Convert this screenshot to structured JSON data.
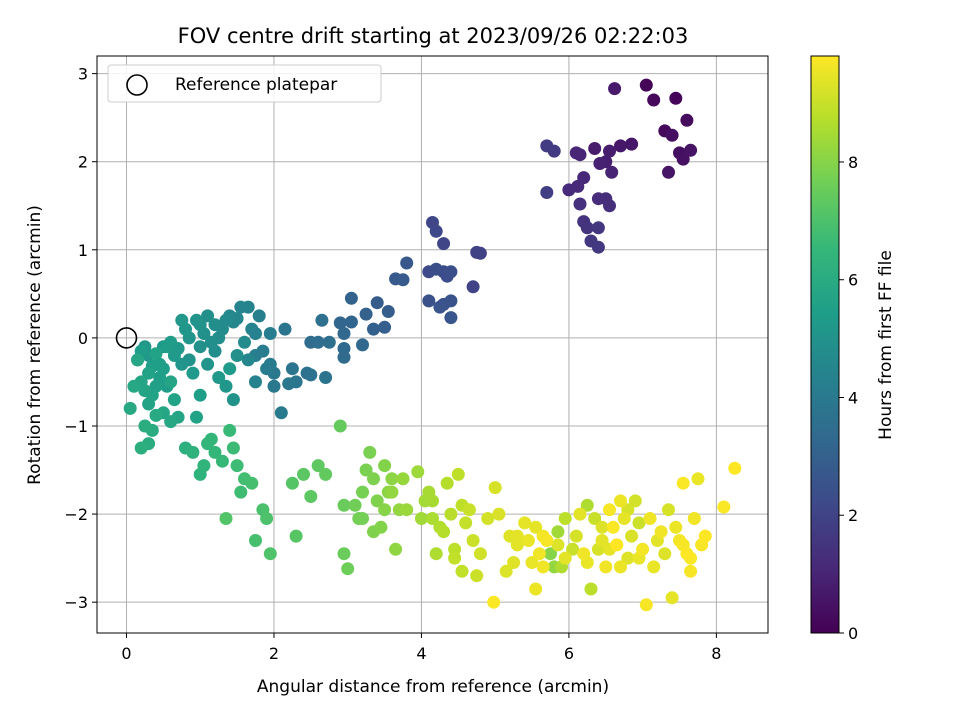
{
  "chart_data": {
    "type": "scatter",
    "title": "FOV centre drift starting at 2023/09/26 02:22:03",
    "xlabel": "Angular distance from reference (arcmin)",
    "ylabel": "Rotation from reference (arcmin)",
    "xlim": [
      -0.4,
      8.7
    ],
    "ylim": [
      -3.35,
      3.2
    ],
    "xticks": [
      0,
      2,
      4,
      6,
      8
    ],
    "xtick_labels": [
      "0",
      "2",
      "4",
      "6",
      "8"
    ],
    "yticks": [
      -3,
      -2,
      -1,
      0,
      1,
      2,
      3
    ],
    "ytick_labels": [
      "−3",
      "−2",
      "−1",
      "0",
      "1",
      "2",
      "3"
    ],
    "grid": true,
    "colormap": "viridis",
    "colormap_stops": [
      "#440154",
      "#482878",
      "#3e4989",
      "#31688e",
      "#26828e",
      "#1f9e89",
      "#35b779",
      "#6ece58",
      "#b5de2b",
      "#fde725"
    ],
    "colorbar": {
      "label": "Hours from first FF file",
      "range": [
        0,
        9.8
      ],
      "ticks": [
        0,
        2,
        4,
        6,
        8
      ],
      "tick_labels": [
        "0",
        "2",
        "4",
        "6",
        "8"
      ]
    },
    "legend": {
      "position": "top-left",
      "entries": [
        {
          "label": "Reference platepar",
          "marker": "open-circle",
          "x": 0,
          "y": 0
        }
      ]
    },
    "points": [
      [
        7.05,
        2.87,
        0.1
      ],
      [
        7.45,
        2.72,
        0.15
      ],
      [
        7.15,
        2.7,
        0.2
      ],
      [
        7.3,
        2.35,
        0.25
      ],
      [
        7.6,
        2.47,
        0.3
      ],
      [
        7.4,
        2.3,
        0.35
      ],
      [
        7.5,
        2.1,
        0.4
      ],
      [
        7.55,
        2.03,
        0.45
      ],
      [
        7.65,
        2.13,
        0.5
      ],
      [
        7.35,
        1.88,
        0.55
      ],
      [
        6.85,
        2.2,
        0.6
      ],
      [
        6.7,
        2.18,
        0.65
      ],
      [
        6.62,
        2.83,
        0.7
      ],
      [
        6.35,
        2.15,
        0.75
      ],
      [
        6.55,
        2.12,
        0.8
      ],
      [
        6.5,
        2.0,
        0.85
      ],
      [
        6.42,
        1.98,
        0.9
      ],
      [
        6.58,
        1.88,
        0.95
      ],
      [
        6.15,
        2.08,
        1.0
      ],
      [
        6.1,
        2.1,
        1.05
      ],
      [
        6.2,
        1.82,
        1.1
      ],
      [
        6.12,
        1.72,
        1.15
      ],
      [
        6.0,
        1.68,
        1.2
      ],
      [
        6.4,
        1.58,
        1.25
      ],
      [
        6.5,
        1.58,
        1.3
      ],
      [
        6.55,
        1.5,
        1.35
      ],
      [
        6.15,
        1.52,
        1.4
      ],
      [
        6.2,
        1.32,
        1.45
      ],
      [
        6.25,
        1.25,
        1.5
      ],
      [
        6.4,
        1.25,
        1.55
      ],
      [
        6.3,
        1.1,
        1.6
      ],
      [
        6.4,
        1.03,
        1.65
      ],
      [
        5.8,
        2.12,
        1.7
      ],
      [
        5.7,
        2.18,
        1.75
      ],
      [
        5.7,
        1.65,
        1.8
      ],
      [
        4.8,
        0.96,
        1.9
      ],
      [
        4.75,
        0.97,
        1.95
      ],
      [
        4.7,
        0.58,
        2.0
      ],
      [
        4.3,
        1.07,
        2.05
      ],
      [
        4.15,
        1.31,
        2.1
      ],
      [
        4.2,
        1.21,
        2.15
      ],
      [
        4.1,
        0.75,
        2.2
      ],
      [
        4.3,
        0.75,
        2.25
      ],
      [
        4.35,
        0.7,
        2.3
      ],
      [
        4.2,
        0.78,
        2.35
      ],
      [
        4.4,
        0.75,
        2.4
      ],
      [
        4.1,
        0.42,
        2.45
      ],
      [
        4.3,
        0.38,
        2.5
      ],
      [
        4.4,
        0.42,
        2.55
      ],
      [
        4.25,
        0.35,
        2.6
      ],
      [
        4.4,
        0.23,
        2.65
      ],
      [
        3.8,
        0.85,
        2.7
      ],
      [
        3.65,
        0.67,
        2.75
      ],
      [
        3.75,
        0.66,
        2.8
      ],
      [
        3.4,
        0.4,
        2.85
      ],
      [
        3.55,
        0.3,
        2.9
      ],
      [
        3.5,
        0.12,
        2.95
      ],
      [
        3.35,
        0.1,
        3.0
      ],
      [
        3.25,
        0.27,
        3.05
      ],
      [
        3.05,
        0.45,
        3.1
      ],
      [
        3.05,
        0.18,
        3.15
      ],
      [
        2.9,
        0.17,
        3.2
      ],
      [
        2.95,
        0.05,
        3.25
      ],
      [
        3.2,
        -0.08,
        3.3
      ],
      [
        2.95,
        -0.12,
        3.35
      ],
      [
        2.95,
        -0.22,
        3.4
      ],
      [
        2.5,
        -0.05,
        3.45
      ],
      [
        2.6,
        -0.05,
        3.5
      ],
      [
        2.75,
        -0.05,
        3.55
      ],
      [
        2.65,
        0.2,
        3.6
      ],
      [
        2.45,
        -0.4,
        3.65
      ],
      [
        2.5,
        -0.42,
        3.7
      ],
      [
        2.7,
        -0.45,
        3.75
      ],
      [
        2.15,
        0.1,
        3.8
      ],
      [
        2.25,
        -0.35,
        3.85
      ],
      [
        2.2,
        -0.52,
        3.9
      ],
      [
        2.0,
        -0.55,
        3.95
      ],
      [
        2.1,
        -0.85,
        4.0
      ],
      [
        1.95,
        -0.3,
        4.05
      ],
      [
        1.85,
        -0.15,
        4.1
      ],
      [
        1.75,
        -0.2,
        4.15
      ],
      [
        1.95,
        0.05,
        4.2
      ],
      [
        1.8,
        0.25,
        4.25
      ],
      [
        1.75,
        0.05,
        4.3
      ],
      [
        1.7,
        0.1,
        4.35
      ],
      [
        1.65,
        0.35,
        4.4
      ],
      [
        1.55,
        0.35,
        4.45
      ],
      [
        1.5,
        0.22,
        4.5
      ],
      [
        1.45,
        0.18,
        4.55
      ],
      [
        1.4,
        0.25,
        4.6
      ],
      [
        1.35,
        0.2,
        4.65
      ],
      [
        1.3,
        0.1,
        4.7
      ],
      [
        1.25,
        0.0,
        4.75
      ],
      [
        1.2,
        0.15,
        4.8
      ],
      [
        1.15,
        -0.05,
        4.85
      ],
      [
        1.1,
        0.25,
        4.9
      ],
      [
        1.05,
        0.05,
        4.95
      ],
      [
        1.0,
        0.15,
        5.0
      ],
      [
        0.95,
        0.2,
        5.05
      ],
      [
        0.85,
        0.0,
        5.1
      ],
      [
        0.8,
        0.1,
        5.15
      ],
      [
        0.75,
        0.2,
        5.2
      ],
      [
        0.7,
        -0.12,
        5.25
      ],
      [
        0.65,
        -0.2,
        5.3
      ],
      [
        0.6,
        -0.05,
        5.35
      ],
      [
        0.55,
        -0.1,
        5.4
      ],
      [
        0.5,
        -0.35,
        5.45
      ],
      [
        0.45,
        -0.45,
        5.5
      ],
      [
        0.4,
        -0.55,
        5.55
      ],
      [
        0.35,
        -0.65,
        5.6
      ],
      [
        0.3,
        -0.75,
        5.65
      ],
      [
        0.25,
        -0.6,
        5.7
      ],
      [
        0.2,
        -0.5,
        5.75
      ],
      [
        0.15,
        -0.25,
        5.8
      ],
      [
        0.1,
        -0.55,
        5.85
      ],
      [
        0.05,
        -0.8,
        5.9
      ],
      [
        0.4,
        -0.88,
        5.95
      ],
      [
        0.35,
        -1.05,
        6.0
      ],
      [
        0.3,
        -1.2,
        6.05
      ],
      [
        0.25,
        -1.0,
        6.1
      ],
      [
        0.2,
        -1.25,
        6.15
      ],
      [
        0.8,
        -1.25,
        6.2
      ],
      [
        0.9,
        -1.3,
        6.25
      ],
      [
        1.0,
        -1.55,
        6.3
      ],
      [
        1.05,
        -1.45,
        6.35
      ],
      [
        1.1,
        -1.2,
        6.4
      ],
      [
        1.15,
        -1.15,
        6.45
      ],
      [
        1.2,
        -1.3,
        6.5
      ],
      [
        1.3,
        -1.4,
        6.55
      ],
      [
        1.4,
        -1.05,
        6.6
      ],
      [
        1.45,
        -1.25,
        6.65
      ],
      [
        1.5,
        -1.45,
        6.7
      ],
      [
        1.55,
        -1.75,
        6.75
      ],
      [
        1.6,
        -1.6,
        6.8
      ],
      [
        1.7,
        -1.65,
        6.85
      ],
      [
        1.75,
        -2.3,
        6.9
      ],
      [
        1.85,
        -1.95,
        6.95
      ],
      [
        1.9,
        -2.05,
        7.0
      ],
      [
        1.95,
        -2.45,
        7.05
      ],
      [
        1.35,
        -2.05,
        7.1
      ],
      [
        2.25,
        -1.65,
        7.15
      ],
      [
        2.3,
        -2.25,
        7.2
      ],
      [
        2.4,
        -1.55,
        7.25
      ],
      [
        2.5,
        -1.8,
        7.3
      ],
      [
        2.6,
        -1.45,
        7.35
      ],
      [
        2.7,
        -1.55,
        7.4
      ],
      [
        2.9,
        -1.0,
        7.45
      ],
      [
        2.95,
        -1.9,
        7.5
      ],
      [
        2.95,
        -2.45,
        7.55
      ],
      [
        3.0,
        -2.62,
        7.6
      ],
      [
        3.1,
        -1.9,
        7.65
      ],
      [
        3.15,
        -2.05,
        7.7
      ],
      [
        3.2,
        -1.75,
        7.75
      ],
      [
        3.3,
        -1.3,
        7.8
      ],
      [
        3.35,
        -1.6,
        7.85
      ],
      [
        3.4,
        -1.85,
        7.9
      ],
      [
        3.45,
        -2.15,
        7.95
      ],
      [
        3.5,
        -1.95,
        8.0
      ],
      [
        3.55,
        -1.75,
        8.05
      ],
      [
        3.6,
        -1.6,
        8.1
      ],
      [
        3.65,
        -2.4,
        8.15
      ],
      [
        3.7,
        -1.95,
        8.2
      ],
      [
        3.75,
        -1.6,
        8.25
      ],
      [
        3.8,
        -1.95,
        8.3
      ],
      [
        3.95,
        -1.52,
        8.35
      ],
      [
        4.0,
        -2.05,
        8.4
      ],
      [
        4.05,
        -1.85,
        8.45
      ],
      [
        4.1,
        -1.75,
        8.5
      ],
      [
        4.15,
        -2.05,
        8.55
      ],
      [
        4.2,
        -2.45,
        8.6
      ],
      [
        4.25,
        -2.15,
        8.65
      ],
      [
        4.3,
        -2.2,
        8.7
      ],
      [
        4.4,
        -2.0,
        8.75
      ],
      [
        4.45,
        -2.4,
        8.8
      ],
      [
        4.5,
        -1.55,
        8.85
      ],
      [
        4.55,
        -2.65,
        8.9
      ],
      [
        4.6,
        -2.1,
        8.95
      ],
      [
        4.65,
        -1.95,
        9.0
      ],
      [
        4.7,
        -2.3,
        9.05
      ],
      [
        4.8,
        -2.45,
        9.1
      ],
      [
        4.9,
        -2.05,
        9.15
      ],
      [
        5.0,
        -1.7,
        9.2
      ],
      [
        5.05,
        -2.0,
        9.25
      ],
      [
        5.15,
        -2.65,
        9.3
      ],
      [
        5.2,
        -2.25,
        9.35
      ],
      [
        5.3,
        -2.35,
        9.4
      ],
      [
        5.4,
        -2.1,
        9.45
      ],
      [
        5.5,
        -2.55,
        9.5
      ],
      [
        5.55,
        -2.85,
        9.55
      ],
      [
        5.6,
        -2.45,
        9.6
      ],
      [
        5.65,
        -2.25,
        9.65
      ],
      [
        5.7,
        -2.3,
        9.7
      ],
      [
        4.98,
        -3.0,
        9.75
      ],
      [
        5.75,
        -2.45,
        8.0
      ],
      [
        5.8,
        -2.6,
        8.2
      ],
      [
        5.85,
        -2.2,
        8.4
      ],
      [
        5.9,
        -2.6,
        8.6
      ],
      [
        5.95,
        -2.05,
        8.8
      ],
      [
        6.05,
        -2.4,
        9.0
      ],
      [
        6.1,
        -2.25,
        9.2
      ],
      [
        6.15,
        -2.0,
        9.4
      ],
      [
        6.2,
        -2.45,
        9.6
      ],
      [
        6.25,
        -1.9,
        8.6
      ],
      [
        6.3,
        -2.85,
        8.8
      ],
      [
        6.35,
        -2.05,
        9.0
      ],
      [
        6.4,
        -2.4,
        9.2
      ],
      [
        6.45,
        -2.3,
        9.4
      ],
      [
        6.5,
        -2.6,
        9.6
      ],
      [
        6.55,
        -1.95,
        9.7
      ],
      [
        6.6,
        -2.15,
        9.75
      ],
      [
        6.65,
        -2.35,
        9.8
      ],
      [
        6.7,
        -1.85,
        9.55
      ],
      [
        6.75,
        -2.05,
        9.45
      ],
      [
        6.8,
        -2.5,
        9.35
      ],
      [
        6.85,
        -2.25,
        9.25
      ],
      [
        6.9,
        -1.85,
        9.15
      ],
      [
        6.95,
        -2.1,
        9.05
      ],
      [
        7.0,
        -2.4,
        9.65
      ],
      [
        7.05,
        -3.03,
        9.7
      ],
      [
        7.1,
        -2.05,
        9.6
      ],
      [
        7.15,
        -2.6,
        9.5
      ],
      [
        7.2,
        -2.3,
        9.4
      ],
      [
        7.3,
        -2.45,
        9.3
      ],
      [
        7.35,
        -1.95,
        9.2
      ],
      [
        7.4,
        -2.95,
        9.45
      ],
      [
        7.45,
        -2.15,
        9.55
      ],
      [
        7.5,
        -2.3,
        9.65
      ],
      [
        7.55,
        -1.65,
        9.75
      ],
      [
        7.6,
        -2.45,
        9.8
      ],
      [
        7.65,
        -2.65,
        9.7
      ],
      [
        7.7,
        -2.05,
        9.6
      ],
      [
        7.75,
        -1.6,
        9.5
      ],
      [
        7.8,
        -2.35,
        9.7
      ],
      [
        7.85,
        -2.25,
        9.8
      ],
      [
        8.1,
        -1.92,
        9.75
      ],
      [
        8.25,
        -1.48,
        9.8
      ],
      [
        0.4,
        -0.18,
        5.6
      ],
      [
        0.6,
        -0.5,
        5.7
      ],
      [
        0.5,
        -0.85,
        5.8
      ],
      [
        0.45,
        -0.3,
        5.5
      ],
      [
        0.3,
        -0.4,
        5.6
      ],
      [
        0.55,
        -0.55,
        5.4
      ],
      [
        0.65,
        -0.7,
        5.65
      ],
      [
        0.3,
        -0.2,
        5.2
      ],
      [
        0.9,
        -0.4,
        5.3
      ],
      [
        1.0,
        -0.65,
        5.5
      ],
      [
        0.95,
        -0.9,
        5.6
      ],
      [
        1.1,
        -0.3,
        5.1
      ],
      [
        1.25,
        -0.45,
        5.2
      ],
      [
        1.4,
        -0.35,
        5.3
      ],
      [
        1.5,
        -0.2,
        4.9
      ],
      [
        1.6,
        -0.05,
        4.7
      ],
      [
        1.35,
        -0.55,
        5.15
      ],
      [
        1.2,
        -0.15,
        4.8
      ],
      [
        0.75,
        -0.3,
        5.1
      ],
      [
        0.85,
        -0.25,
        5.0
      ],
      [
        1.0,
        -0.1,
        4.9
      ],
      [
        0.15,
        -0.25,
        5.6
      ],
      [
        0.2,
        -0.15,
        5.4
      ],
      [
        0.25,
        -0.1,
        5.2
      ],
      [
        0.35,
        -0.32,
        5.5
      ],
      [
        0.5,
        -0.1,
        5.3
      ],
      [
        0.7,
        -0.9,
        5.75
      ],
      [
        0.6,
        -0.95,
        5.85
      ],
      [
        1.75,
        -0.5,
        4.4
      ],
      [
        1.9,
        -0.35,
        4.1
      ],
      [
        1.65,
        -0.25,
        4.5
      ],
      [
        1.45,
        -0.7,
        5.0
      ],
      [
        2.0,
        -0.4,
        3.95
      ],
      [
        2.3,
        -0.5,
        3.8
      ],
      [
        3.6,
        -1.75,
        8.2
      ],
      [
        3.35,
        -2.2,
        7.9
      ],
      [
        3.25,
        -1.5,
        7.8
      ],
      [
        3.2,
        -2.05,
        7.7
      ],
      [
        3.5,
        -1.45,
        7.95
      ],
      [
        4.15,
        -1.85,
        8.5
      ],
      [
        4.35,
        -1.65,
        8.7
      ],
      [
        4.55,
        -1.9,
        8.85
      ],
      [
        4.45,
        -2.5,
        8.9
      ],
      [
        4.75,
        -2.7,
        9.05
      ],
      [
        5.3,
        -2.25,
        9.4
      ],
      [
        5.25,
        -2.55,
        9.35
      ],
      [
        5.45,
        -2.3,
        9.5
      ],
      [
        5.55,
        -2.15,
        9.45
      ],
      [
        5.65,
        -2.6,
        9.6
      ],
      [
        5.85,
        -2.35,
        9.3
      ],
      [
        5.95,
        -2.5,
        9.4
      ],
      [
        6.25,
        -2.55,
        9.5
      ],
      [
        6.45,
        -2.15,
        9.3
      ],
      [
        6.55,
        -2.4,
        9.45
      ],
      [
        6.7,
        -2.6,
        9.55
      ],
      [
        6.8,
        -1.95,
        9.2
      ],
      [
        6.95,
        -2.5,
        9.5
      ],
      [
        7.25,
        -2.2,
        9.6
      ],
      [
        7.55,
        -2.35,
        9.7
      ],
      [
        7.65,
        -2.5,
        9.75
      ]
    ]
  }
}
